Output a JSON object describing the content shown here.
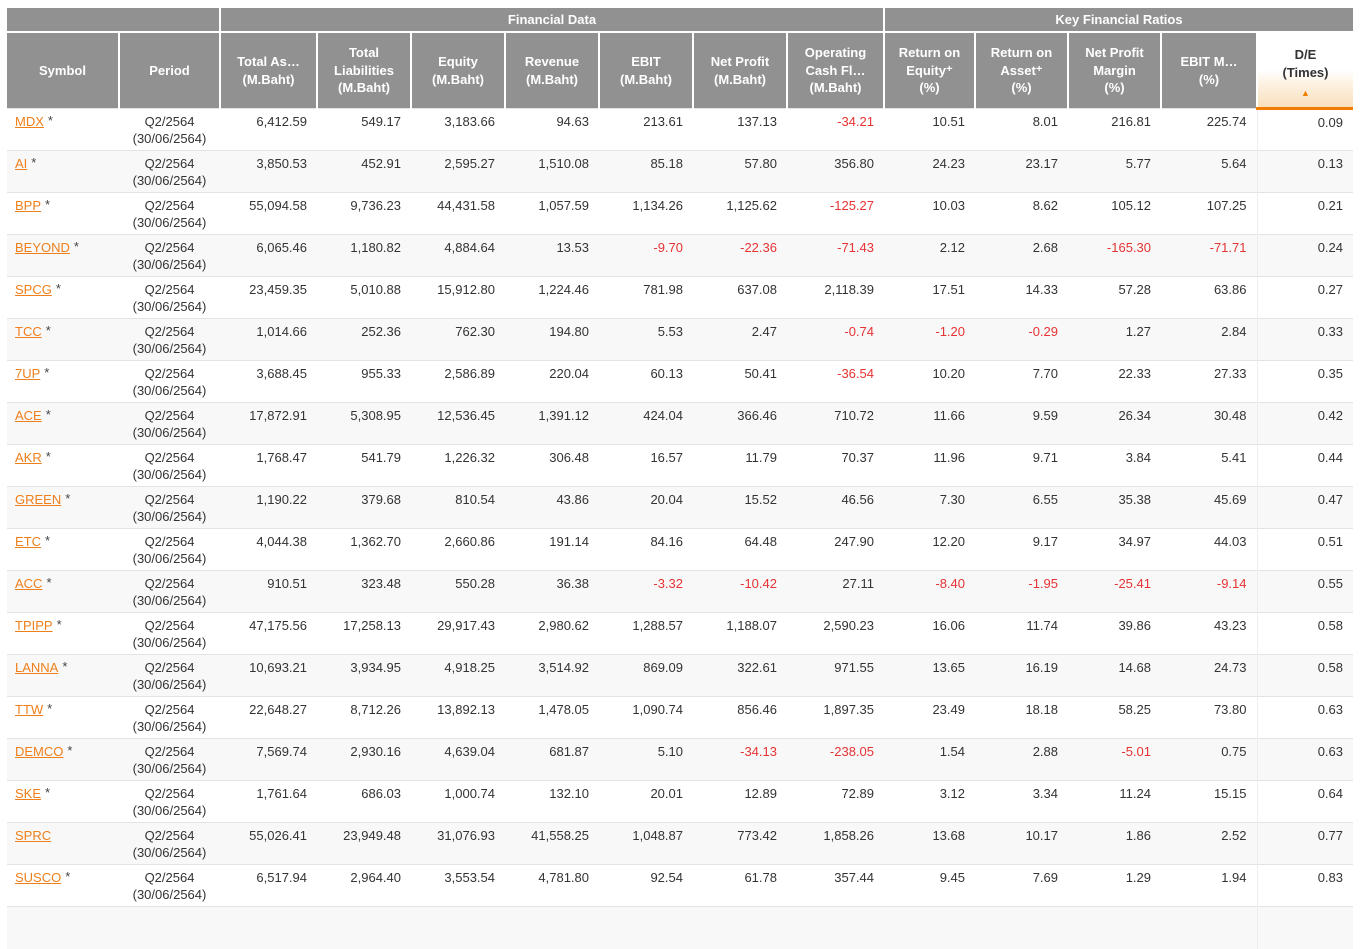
{
  "colors": {
    "header_gray": "#919191",
    "accent_orange": "#f07d00",
    "link_orange": "#ef7f1a",
    "negative_red": "#e63333",
    "row_alt": "#f8f8f8"
  },
  "table": {
    "group_headers": [
      {
        "id": "spacer",
        "label": "",
        "span": 2
      },
      {
        "id": "financial-data",
        "label": "Financial Data",
        "span": 7
      },
      {
        "id": "key-financial-ratios",
        "label": "Key Financial Ratios",
        "span": 5
      }
    ],
    "columns": [
      {
        "id": "symbol",
        "lines": [
          "Symbol"
        ]
      },
      {
        "id": "period",
        "lines": [
          "Period"
        ]
      },
      {
        "id": "total-assets",
        "lines": [
          "Total As…",
          "(M.Baht)"
        ]
      },
      {
        "id": "total-liabilities",
        "lines": [
          "Total",
          "Liabilities",
          "(M.Baht)"
        ]
      },
      {
        "id": "equity",
        "lines": [
          "Equity",
          "(M.Baht)"
        ]
      },
      {
        "id": "revenue",
        "lines": [
          "Revenue",
          "(M.Baht)"
        ]
      },
      {
        "id": "ebit",
        "lines": [
          "EBIT",
          "(M.Baht)"
        ]
      },
      {
        "id": "net-profit",
        "lines": [
          "Net Profit",
          "(M.Baht)"
        ]
      },
      {
        "id": "operating-cash-flow",
        "lines": [
          "Operating",
          "Cash Fl…",
          "(M.Baht)"
        ]
      },
      {
        "id": "return-on-equity",
        "lines": [
          "Return on",
          "Equity⁺",
          "(%)"
        ]
      },
      {
        "id": "return-on-asset",
        "lines": [
          "Return on",
          "Asset⁺",
          "(%)"
        ]
      },
      {
        "id": "net-profit-margin",
        "lines": [
          "Net Profit",
          "Margin",
          "(%)"
        ]
      },
      {
        "id": "ebit-margin",
        "lines": [
          "EBIT M…",
          "(%)"
        ]
      },
      {
        "id": "de",
        "lines": [
          "D/E",
          "(Times)"
        ],
        "sorted": true,
        "sort_direction": "ascending",
        "sort_icon": "▲"
      }
    ],
    "rows": [
      {
        "symbol": "MDX",
        "footnote": "*",
        "period": [
          "Q2/2564",
          "(30/06/2564)"
        ],
        "values": [
          "6,412.59",
          "549.17",
          "3,183.66",
          "94.63",
          "213.61",
          "137.13",
          "-34.21",
          "10.51",
          "8.01",
          "216.81",
          "225.74",
          "0.09"
        ]
      },
      {
        "symbol": "AI",
        "footnote": "*",
        "period": [
          "Q2/2564",
          "(30/06/2564)"
        ],
        "values": [
          "3,850.53",
          "452.91",
          "2,595.27",
          "1,510.08",
          "85.18",
          "57.80",
          "356.80",
          "24.23",
          "23.17",
          "5.77",
          "5.64",
          "0.13"
        ]
      },
      {
        "symbol": "BPP",
        "footnote": "*",
        "period": [
          "Q2/2564",
          "(30/06/2564)"
        ],
        "values": [
          "55,094.58",
          "9,736.23",
          "44,431.58",
          "1,057.59",
          "1,134.26",
          "1,125.62",
          "-125.27",
          "10.03",
          "8.62",
          "105.12",
          "107.25",
          "0.21"
        ]
      },
      {
        "symbol": "BEYOND",
        "footnote": "*",
        "period": [
          "Q2/2564",
          "(30/06/2564)"
        ],
        "values": [
          "6,065.46",
          "1,180.82",
          "4,884.64",
          "13.53",
          "-9.70",
          "-22.36",
          "-71.43",
          "2.12",
          "2.68",
          "-165.30",
          "-71.71",
          "0.24"
        ]
      },
      {
        "symbol": "SPCG",
        "footnote": "*",
        "period": [
          "Q2/2564",
          "(30/06/2564)"
        ],
        "values": [
          "23,459.35",
          "5,010.88",
          "15,912.80",
          "1,224.46",
          "781.98",
          "637.08",
          "2,118.39",
          "17.51",
          "14.33",
          "57.28",
          "63.86",
          "0.27"
        ]
      },
      {
        "symbol": "TCC",
        "footnote": "*",
        "period": [
          "Q2/2564",
          "(30/06/2564)"
        ],
        "values": [
          "1,014.66",
          "252.36",
          "762.30",
          "194.80",
          "5.53",
          "2.47",
          "-0.74",
          "-1.20",
          "-0.29",
          "1.27",
          "2.84",
          "0.33"
        ]
      },
      {
        "symbol": "7UP",
        "footnote": "*",
        "period": [
          "Q2/2564",
          "(30/06/2564)"
        ],
        "values": [
          "3,688.45",
          "955.33",
          "2,586.89",
          "220.04",
          "60.13",
          "50.41",
          "-36.54",
          "10.20",
          "7.70",
          "22.33",
          "27.33",
          "0.35"
        ]
      },
      {
        "symbol": "ACE",
        "footnote": "*",
        "period": [
          "Q2/2564",
          "(30/06/2564)"
        ],
        "values": [
          "17,872.91",
          "5,308.95",
          "12,536.45",
          "1,391.12",
          "424.04",
          "366.46",
          "710.72",
          "11.66",
          "9.59",
          "26.34",
          "30.48",
          "0.42"
        ]
      },
      {
        "symbol": "AKR",
        "footnote": "*",
        "period": [
          "Q2/2564",
          "(30/06/2564)"
        ],
        "values": [
          "1,768.47",
          "541.79",
          "1,226.32",
          "306.48",
          "16.57",
          "11.79",
          "70.37",
          "11.96",
          "9.71",
          "3.84",
          "5.41",
          "0.44"
        ]
      },
      {
        "symbol": "GREEN",
        "footnote": "*",
        "period": [
          "Q2/2564",
          "(30/06/2564)"
        ],
        "values": [
          "1,190.22",
          "379.68",
          "810.54",
          "43.86",
          "20.04",
          "15.52",
          "46.56",
          "7.30",
          "6.55",
          "35.38",
          "45.69",
          "0.47"
        ]
      },
      {
        "symbol": "ETC",
        "footnote": "*",
        "period": [
          "Q2/2564",
          "(30/06/2564)"
        ],
        "values": [
          "4,044.38",
          "1,362.70",
          "2,660.86",
          "191.14",
          "84.16",
          "64.48",
          "247.90",
          "12.20",
          "9.17",
          "34.97",
          "44.03",
          "0.51"
        ]
      },
      {
        "symbol": "ACC",
        "footnote": "*",
        "period": [
          "Q2/2564",
          "(30/06/2564)"
        ],
        "values": [
          "910.51",
          "323.48",
          "550.28",
          "36.38",
          "-3.32",
          "-10.42",
          "27.11",
          "-8.40",
          "-1.95",
          "-25.41",
          "-9.14",
          "0.55"
        ]
      },
      {
        "symbol": "TPIPP",
        "footnote": "*",
        "period": [
          "Q2/2564",
          "(30/06/2564)"
        ],
        "values": [
          "47,175.56",
          "17,258.13",
          "29,917.43",
          "2,980.62",
          "1,288.57",
          "1,188.07",
          "2,590.23",
          "16.06",
          "11.74",
          "39.86",
          "43.23",
          "0.58"
        ]
      },
      {
        "symbol": "LANNA",
        "footnote": "*",
        "period": [
          "Q2/2564",
          "(30/06/2564)"
        ],
        "values": [
          "10,693.21",
          "3,934.95",
          "4,918.25",
          "3,514.92",
          "869.09",
          "322.61",
          "971.55",
          "13.65",
          "16.19",
          "14.68",
          "24.73",
          "0.58"
        ]
      },
      {
        "symbol": "TTW",
        "footnote": "*",
        "period": [
          "Q2/2564",
          "(30/06/2564)"
        ],
        "values": [
          "22,648.27",
          "8,712.26",
          "13,892.13",
          "1,478.05",
          "1,090.74",
          "856.46",
          "1,897.35",
          "23.49",
          "18.18",
          "58.25",
          "73.80",
          "0.63"
        ]
      },
      {
        "symbol": "DEMCO",
        "footnote": "*",
        "period": [
          "Q2/2564",
          "(30/06/2564)"
        ],
        "values": [
          "7,569.74",
          "2,930.16",
          "4,639.04",
          "681.87",
          "5.10",
          "-34.13",
          "-238.05",
          "1.54",
          "2.88",
          "-5.01",
          "0.75",
          "0.63"
        ]
      },
      {
        "symbol": "SKE",
        "footnote": "*",
        "period": [
          "Q2/2564",
          "(30/06/2564)"
        ],
        "values": [
          "1,761.64",
          "686.03",
          "1,000.74",
          "132.10",
          "20.01",
          "12.89",
          "72.89",
          "3.12",
          "3.34",
          "11.24",
          "15.15",
          "0.64"
        ]
      },
      {
        "symbol": "SPRC",
        "footnote": "",
        "period": [
          "Q2/2564",
          "(30/06/2564)"
        ],
        "values": [
          "55,026.41",
          "23,949.48",
          "31,076.93",
          "41,558.25",
          "1,048.87",
          "773.42",
          "1,858.26",
          "13.68",
          "10.17",
          "1.86",
          "2.52",
          "0.77"
        ]
      },
      {
        "symbol": "SUSCO",
        "footnote": "*",
        "period": [
          "Q2/2564",
          "(30/06/2564)"
        ],
        "values": [
          "6,517.94",
          "2,964.40",
          "3,553.54",
          "4,781.80",
          "92.54",
          "61.78",
          "357.44",
          "9.45",
          "7.69",
          "1.29",
          "1.94",
          "0.83"
        ]
      }
    ],
    "partial_next_row_visible": true
  }
}
